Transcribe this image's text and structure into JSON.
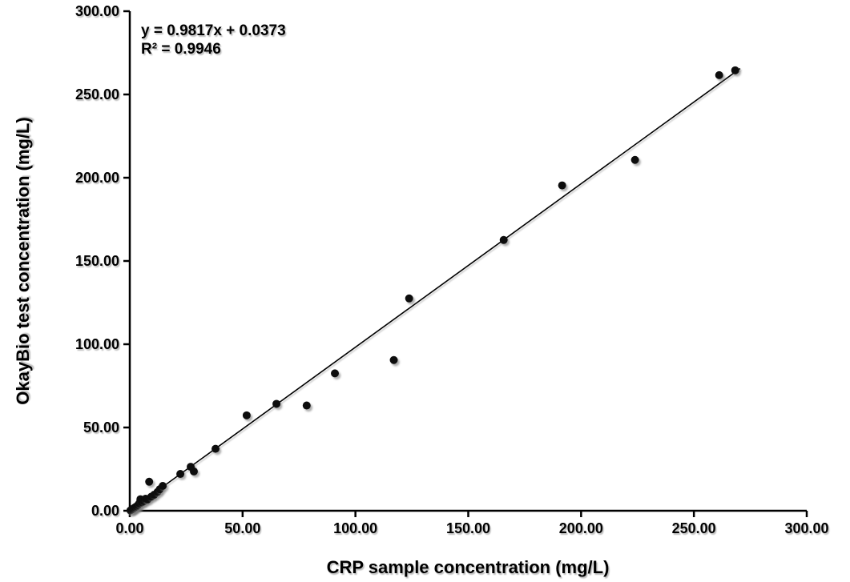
{
  "chart_data": {
    "type": "scatter",
    "title": "",
    "xlabel": "CRP sample concentration (mg/L)",
    "ylabel": "OkayBio test concentration (mg/L)",
    "xlim": [
      0,
      300
    ],
    "ylim": [
      0,
      300
    ],
    "xticks": [
      0,
      50,
      100,
      150,
      200,
      250,
      300
    ],
    "yticks": [
      0,
      50,
      100,
      150,
      200,
      250,
      300
    ],
    "tick_decimals": 2,
    "grid": false,
    "legend": "none",
    "annotations": {
      "equation": "y = 0.9817x + 0.0373",
      "r_squared": "R² = 0.9946"
    },
    "trendline": {
      "slope": 0.9817,
      "intercept": 0.0373,
      "x_start": 0,
      "x_end": 270.5,
      "color": "#000000"
    },
    "points": [
      [
        0.3,
        0.2
      ],
      [
        0.8,
        0.6
      ],
      [
        1.3,
        1.0
      ],
      [
        1.9,
        1.6
      ],
      [
        2.4,
        2.1
      ],
      [
        3.0,
        2.6
      ],
      [
        3.6,
        3.3
      ],
      [
        4.2,
        4.4
      ],
      [
        4.7,
        6.9
      ],
      [
        5.4,
        5.0
      ],
      [
        6.2,
        5.7
      ],
      [
        7.0,
        7.2
      ],
      [
        7.9,
        6.8
      ],
      [
        8.6,
        17.4
      ],
      [
        9.5,
        8.4
      ],
      [
        10.8,
        9.6
      ],
      [
        12.3,
        11.3
      ],
      [
        13.3,
        12.9
      ],
      [
        14.6,
        14.9
      ],
      [
        22.4,
        22.1
      ],
      [
        27.0,
        26.4
      ],
      [
        28.4,
        23.6
      ],
      [
        38.0,
        37.2
      ],
      [
        51.8,
        57.3
      ],
      [
        65.0,
        64.2
      ],
      [
        78.4,
        63.2
      ],
      [
        90.9,
        82.5
      ],
      [
        117.0,
        90.5
      ],
      [
        123.8,
        127.5
      ],
      [
        165.7,
        162.6
      ],
      [
        191.6,
        195.4
      ],
      [
        223.9,
        210.7
      ],
      [
        261.2,
        261.6
      ],
      [
        268.3,
        264.5
      ]
    ],
    "point_color": "#0d0d0d",
    "axis_color": "#000000",
    "background_color": "#ffffff"
  }
}
